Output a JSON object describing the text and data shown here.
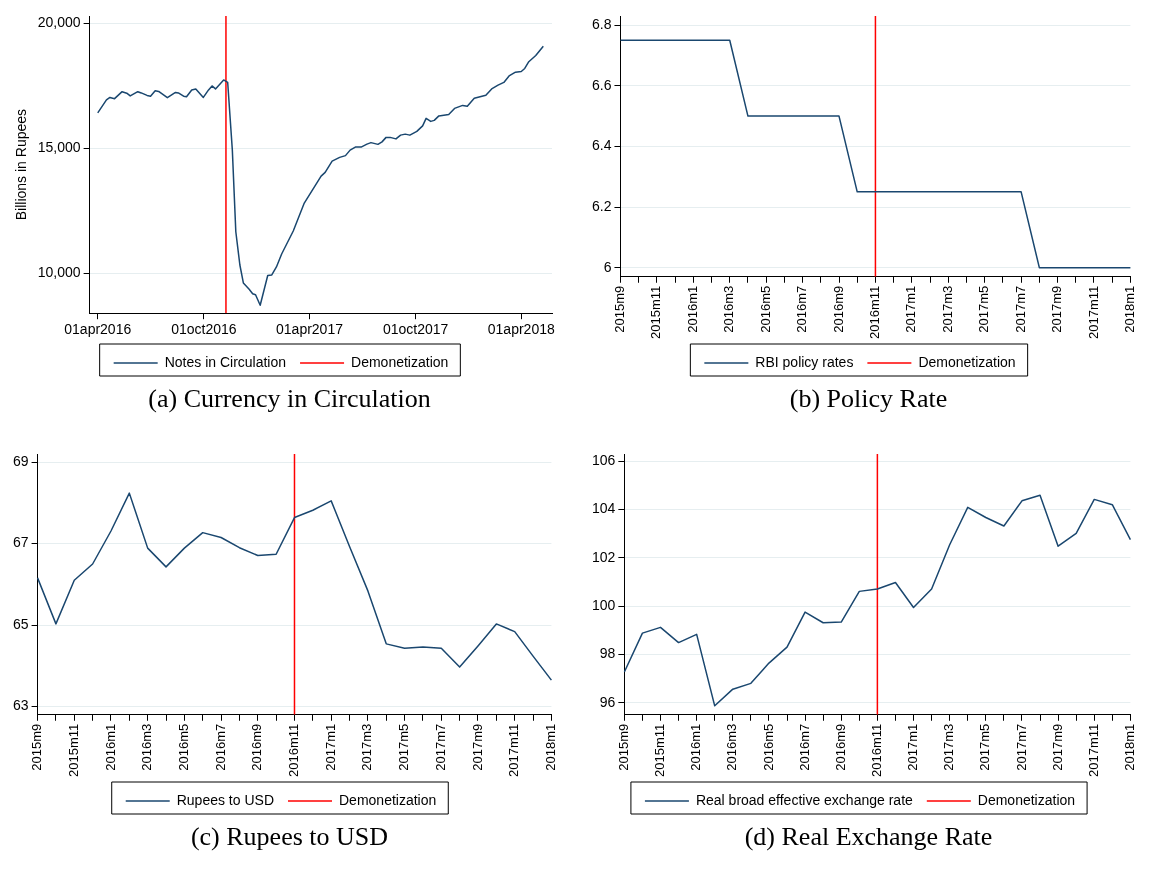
{
  "chart_data": [
    {
      "type": "line",
      "title": "(a) Currency in Circulation",
      "ylabel": "Billions in Rupees",
      "x": [
        "2016-04-01",
        "2016-04-16",
        "2016-04-22",
        "2016-04-30",
        "2016-05-13",
        "2016-05-21",
        "2016-05-27",
        "2016-06-09",
        "2016-06-15",
        "2016-06-25",
        "2016-07-01",
        "2016-07-09",
        "2016-07-15",
        "2016-07-30",
        "2016-08-13",
        "2016-08-18",
        "2016-08-27",
        "2016-09-01",
        "2016-09-10",
        "2016-09-17",
        "2016-09-30",
        "2016-10-09",
        "2016-10-15",
        "2016-10-21",
        "2016-11-04",
        "2016-11-11",
        "2016-11-19",
        "2016-11-25",
        "2016-12-02",
        "2016-12-08",
        "2016-12-18",
        "2016-12-24",
        "2016-12-29",
        "2017-01-06",
        "2017-01-19",
        "2017-01-26",
        "2017-02-03",
        "2017-02-12",
        "2017-03-04",
        "2017-03-23",
        "2017-04-21",
        "2017-04-28",
        "2017-05-10",
        "2017-05-23",
        "2017-06-02",
        "2017-06-10",
        "2017-06-19",
        "2017-06-29",
        "2017-07-09",
        "2017-07-16",
        "2017-07-28",
        "2017-08-04",
        "2017-08-11",
        "2017-08-18",
        "2017-08-28",
        "2017-09-05",
        "2017-09-13",
        "2017-09-21",
        "2017-10-03",
        "2017-10-13",
        "2017-10-19",
        "2017-10-27",
        "2017-11-02",
        "2017-11-10",
        "2017-11-27",
        "2017-12-07",
        "2017-12-21",
        "2017-12-29",
        "2018-01-10",
        "2018-01-30",
        "2018-02-09",
        "2018-02-20",
        "2018-03-02",
        "2018-03-11",
        "2018-03-22",
        "2018-04-01",
        "2018-04-07",
        "2018-04-14",
        "2018-04-26",
        "2018-05-09"
      ],
      "series": [
        {
          "name": "Notes in Circulation",
          "color": "#1a476f",
          "values": [
            16420,
            16940,
            17040,
            16990,
            17270,
            17210,
            17100,
            17270,
            17220,
            17120,
            17090,
            17310,
            17280,
            17030,
            17240,
            17220,
            17090,
            17070,
            17340,
            17380,
            17040,
            17340,
            17500,
            17380,
            17740,
            17640,
            14930,
            11660,
            10330,
            9610,
            9360,
            9180,
            9140,
            8720,
            9910,
            9930,
            10250,
            10770,
            11690,
            12810,
            13890,
            14040,
            14490,
            14640,
            14710,
            14930,
            15050,
            15050,
            15170,
            15230,
            15160,
            15260,
            15440,
            15440,
            15380,
            15530,
            15570,
            15530,
            15680,
            15900,
            16200,
            16080,
            16120,
            16300,
            16360,
            16600,
            16720,
            16690,
            17010,
            17130,
            17380,
            17530,
            17640,
            17900,
            18050,
            18080,
            18200,
            18470,
            18720,
            19090
          ]
        }
      ],
      "xlim": [
        "2016-03-18",
        "2018-05-24"
      ],
      "xticks": [
        {
          "value": "2016-04-01",
          "label": "01apr2016"
        },
        {
          "value": "2016-10-01",
          "label": "01oct2016"
        },
        {
          "value": "2017-04-01",
          "label": "01apr2017"
        },
        {
          "value": "2017-10-01",
          "label": "01oct2017"
        },
        {
          "value": "2018-04-01",
          "label": "01apr2018"
        }
      ],
      "ylim": [
        8400,
        20300
      ],
      "yticks": [
        {
          "value": 10000,
          "label": "10,000"
        },
        {
          "value": 15000,
          "label": "15,000"
        },
        {
          "value": 20000,
          "label": "20,000"
        }
      ],
      "ref_lines": [
        {
          "axis": "x",
          "value": "2016-11-08",
          "label": "Demonetization",
          "color": "#ff0000"
        }
      ],
      "grid": "y",
      "legend": "bottom"
    },
    {
      "type": "line",
      "title": "(b) Policy Rate",
      "categories": [
        "2015m9",
        null,
        "2015m11",
        null,
        "2016m1",
        null,
        "2016m3",
        null,
        "2016m5",
        null,
        "2016m7",
        null,
        "2016m9",
        null,
        "2016m11",
        null,
        "2017m1",
        null,
        "2017m3",
        null,
        "2017m5",
        null,
        "2017m7",
        null,
        "2017m9",
        null,
        "2017m11",
        null,
        "2018m1"
      ],
      "series": [
        {
          "name": "RBI policy rates",
          "color": "#1a476f",
          "values": [
            6.75,
            6.75,
            6.75,
            6.75,
            6.75,
            6.75,
            6.75,
            6.5,
            6.5,
            6.5,
            6.5,
            6.5,
            6.5,
            6.25,
            6.25,
            6.25,
            6.25,
            6.25,
            6.25,
            6.25,
            6.25,
            6.25,
            6.25,
            6,
            6,
            6,
            6,
            6,
            6
          ]
        }
      ],
      "ylim": [
        5.97,
        6.83
      ],
      "yticks": [
        6,
        6.2,
        6.4,
        6.6,
        6.8
      ],
      "ref_lines": [
        {
          "axis": "x",
          "value": "2016m11",
          "label": "Demonetization",
          "color": "#ff0000"
        }
      ],
      "grid": "y",
      "legend": "bottom"
    },
    {
      "type": "line",
      "title": "(c) Rupees to USD",
      "categories": [
        "2015m9",
        null,
        "2015m11",
        null,
        "2016m1",
        null,
        "2016m3",
        null,
        "2016m5",
        null,
        "2016m7",
        null,
        "2016m9",
        null,
        "2016m11",
        null,
        "2017m1",
        null,
        "2017m3",
        null,
        "2017m5",
        null,
        "2017m7",
        null,
        "2017m9",
        null,
        "2017m11",
        null,
        "2018m1"
      ],
      "series": [
        {
          "name": "Rupees to USD",
          "color": "#1a476f",
          "values": [
            66.16,
            65.03,
            66.1,
            66.5,
            67.31,
            68.24,
            66.89,
            66.43,
            66.89,
            67.27,
            67.15,
            66.9,
            66.71,
            66.74,
            67.64,
            67.82,
            68.05,
            66.93,
            65.84,
            64.54,
            64.43,
            64.46,
            64.43,
            63.97,
            64.49,
            65.03,
            64.84,
            64.24,
            63.65
          ]
        }
      ],
      "ylim": [
        62.8,
        69.2
      ],
      "yticks": [
        63,
        65,
        67,
        69
      ],
      "ref_lines": [
        {
          "axis": "x",
          "value": "2016m11",
          "label": "Demonetization",
          "color": "#ff0000"
        }
      ],
      "grid": "y",
      "legend": "bottom"
    },
    {
      "type": "line",
      "title": "(d) Real Exchange Rate",
      "categories": [
        "2015m9",
        null,
        "2015m11",
        null,
        "2016m1",
        null,
        "2016m3",
        null,
        "2016m5",
        null,
        "2016m7",
        null,
        "2016m9",
        null,
        "2016m11",
        null,
        "2017m1",
        null,
        "2017m3",
        null,
        "2017m5",
        null,
        "2017m7",
        null,
        "2017m9",
        null,
        "2017m11",
        null,
        "2018m1"
      ],
      "series": [
        {
          "name": "Real broad effective exchange rate",
          "color": "#1a476f",
          "values": [
            97.27,
            98.88,
            99.12,
            98.49,
            98.83,
            95.87,
            96.56,
            96.8,
            97.64,
            98.3,
            99.75,
            99.31,
            99.34,
            100.61,
            100.71,
            100.98,
            99.94,
            100.71,
            102.54,
            104.09,
            103.67,
            103.32,
            104.36,
            104.59,
            102.48,
            103.01,
            104.42,
            104.2,
            102.75
          ]
        }
      ],
      "ylim": [
        95.5,
        106.3
      ],
      "yticks": [
        96,
        98,
        100,
        102,
        104,
        106
      ],
      "ref_lines": [
        {
          "axis": "x",
          "value": "2016m11",
          "label": "Demonetization",
          "color": "#ff0000"
        }
      ],
      "grid": "y",
      "legend": "bottom"
    }
  ]
}
